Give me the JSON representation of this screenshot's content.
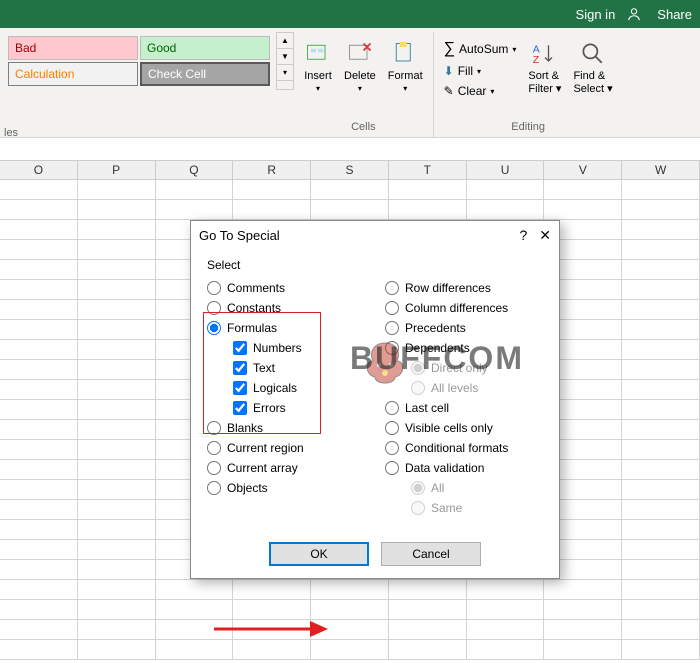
{
  "titlebar": {
    "signin": "Sign in",
    "share": "Share"
  },
  "ribbon": {
    "styles": {
      "bad": "Bad",
      "good": "Good",
      "calc": "Calculation",
      "check": "Check Cell"
    },
    "cells_group": {
      "insert": "Insert",
      "delete": "Delete",
      "format": "Format",
      "label": "Cells"
    },
    "editing_group": {
      "autosum": "AutoSum",
      "fill": "Fill",
      "clear": "Clear",
      "sort": "Sort &",
      "filter": "Filter",
      "find": "Find &",
      "select": "Select",
      "label": "Editing"
    },
    "ctx": "les"
  },
  "columns": [
    "O",
    "P",
    "Q",
    "R",
    "S",
    "T",
    "U",
    "V",
    "W"
  ],
  "dialog": {
    "title": "Go To Special",
    "select": "Select",
    "left": {
      "comments": "Comments",
      "constants": "Constants",
      "formulas": "Formulas",
      "numbers": "Numbers",
      "text": "Text",
      "logicals": "Logicals",
      "errors": "Errors",
      "blanks": "Blanks",
      "current_region": "Current region",
      "current_array": "Current array",
      "objects": "Objects"
    },
    "right": {
      "row_diff": "Row differences",
      "col_diff": "Column differences",
      "precedents": "Precedents",
      "dependents": "Dependents",
      "direct_only": "Direct only",
      "all_levels": "All levels",
      "last_cell": "Last cell",
      "visible": "Visible cells only",
      "cond_fmt": "Conditional formats",
      "data_val": "Data validation",
      "all": "All",
      "same": "Same"
    },
    "ok": "OK",
    "cancel": "Cancel"
  },
  "watermark": "BUFFCOM",
  "annotation": {
    "highlight_color": "#e02020",
    "ok_border_color": "#0078d7"
  },
  "colors": {
    "excel_green": "#217346",
    "ribbon_bg": "#f3f2f1",
    "bad_bg": "#ffc7ce",
    "bad_fg": "#9c0006",
    "good_bg": "#c6efce",
    "good_fg": "#006100",
    "calc_fg": "#fa7d00",
    "check_bg": "#a5a5a5"
  }
}
